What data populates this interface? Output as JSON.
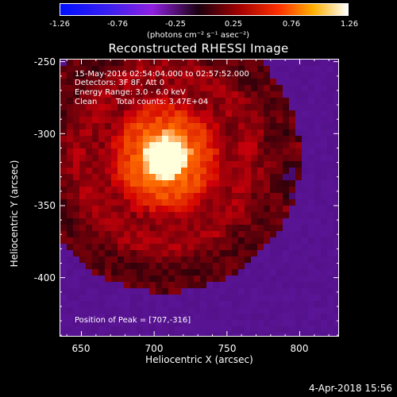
{
  "colorbar": {
    "ticks": [
      "-1.26",
      "-0.76",
      "-0.25",
      "0.25",
      "0.76",
      "1.26"
    ],
    "unit": "(photons cm⁻² s⁻¹ asec⁻²)",
    "min": -1.26,
    "max": 1.26
  },
  "chart_data": {
    "type": "heatmap",
    "title": "Reconstructed RHESSI Image",
    "xlabel": "Heliocentric X (arcsec)",
    "ylabel": "Heliocentric Y (arcsec)",
    "xlim": [
      635,
      827
    ],
    "ylim": [
      -441,
      -248
    ],
    "xticks": [
      "650",
      "700",
      "750",
      "800"
    ],
    "yticks": [
      "-250",
      "-300",
      "-350",
      "-400"
    ],
    "xtick_values": [
      650,
      700,
      750,
      800
    ],
    "ytick_values": [
      -250,
      -300,
      -350,
      -400
    ],
    "peak": [
      707,
      -316
    ],
    "colormap": "hot-with-negative-blue",
    "annotations": {
      "time_range": "15-May-2016 02:54:04.000 to 02:57:52.000",
      "detectors": "Detectors: 3F 8F, Att 0",
      "energy": "Energy Range: 3.0 - 6.0 keV",
      "method": "Clean",
      "counts": "Total counts: 3.47E+04",
      "peak_text": "Position of Peak = [707,-316]"
    }
  },
  "footer": {
    "timestamp": "4-Apr-2018 15:56"
  }
}
